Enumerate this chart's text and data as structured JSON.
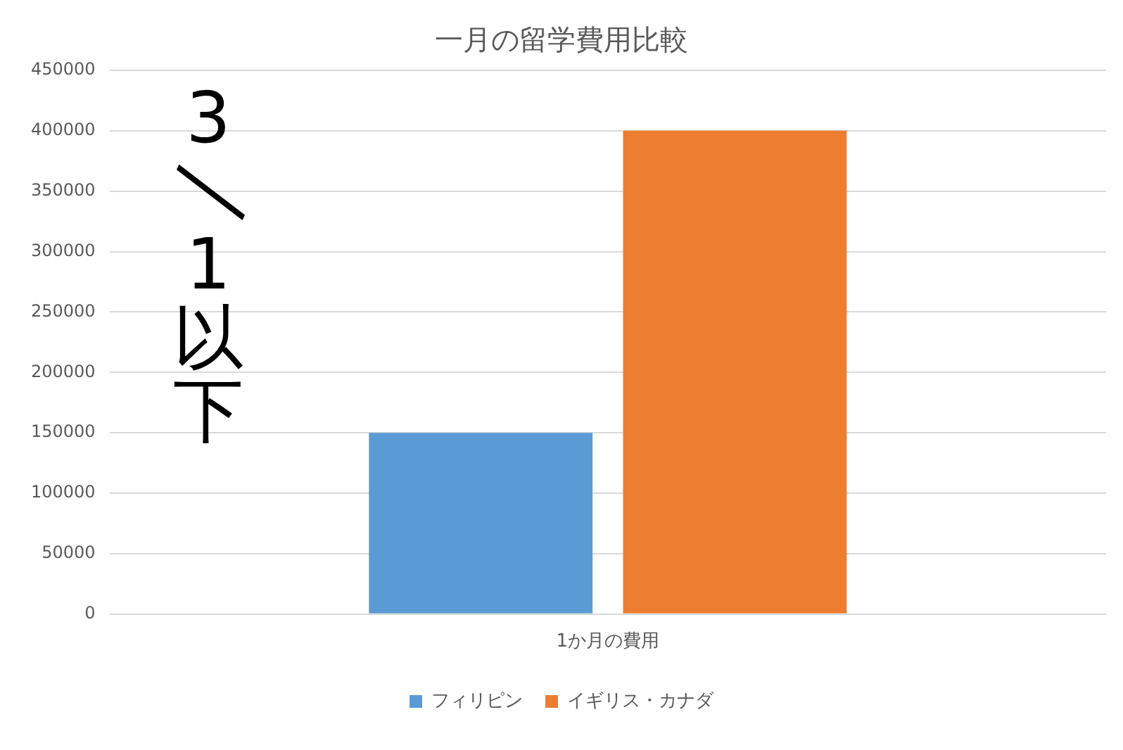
{
  "chart_data": {
    "type": "bar",
    "title": "一月の留学費用比較",
    "categories": [
      "1か月の費用"
    ],
    "series": [
      {
        "name": "フィリピン",
        "color": "#5b9bd5",
        "values": [
          150000
        ]
      },
      {
        "name": "イギリス・カナダ",
        "color": "#ed7d31",
        "values": [
          400000
        ]
      }
    ],
    "ylim": [
      0,
      450000
    ],
    "yticks": [
      0,
      50000,
      100000,
      150000,
      200000,
      250000,
      300000,
      350000,
      400000,
      450000
    ],
    "grid": "y",
    "legend": "bottom",
    "annotations": [
      "3/1以下"
    ]
  }
}
